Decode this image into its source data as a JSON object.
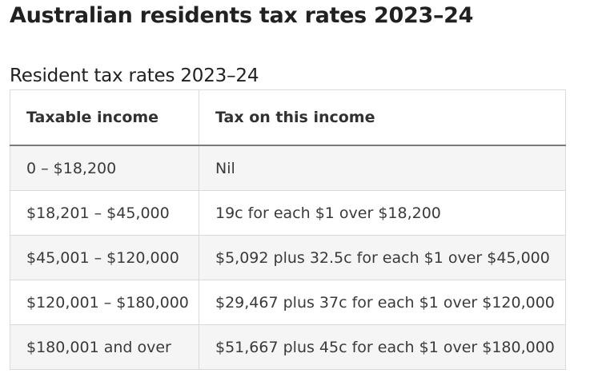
{
  "page": {
    "title": "Australian residents tax rates 2023–24"
  },
  "table": {
    "caption": "Resident tax rates 2023–24",
    "headers": [
      "Taxable income",
      "Tax on this income"
    ],
    "rows": [
      [
        "0 – $18,200",
        "Nil"
      ],
      [
        "$18,201 – $45,000",
        "19c for each $1 over $18,200"
      ],
      [
        "$45,001 – $120,000",
        "$5,092 plus 32.5c for each $1 over $45,000"
      ],
      [
        "$120,001 – $180,000",
        "$29,467 plus 37c for each $1 over $120,000"
      ],
      [
        "$180,001 and over",
        "$51,667 plus 45c for each $1 over $180,000"
      ]
    ]
  }
}
